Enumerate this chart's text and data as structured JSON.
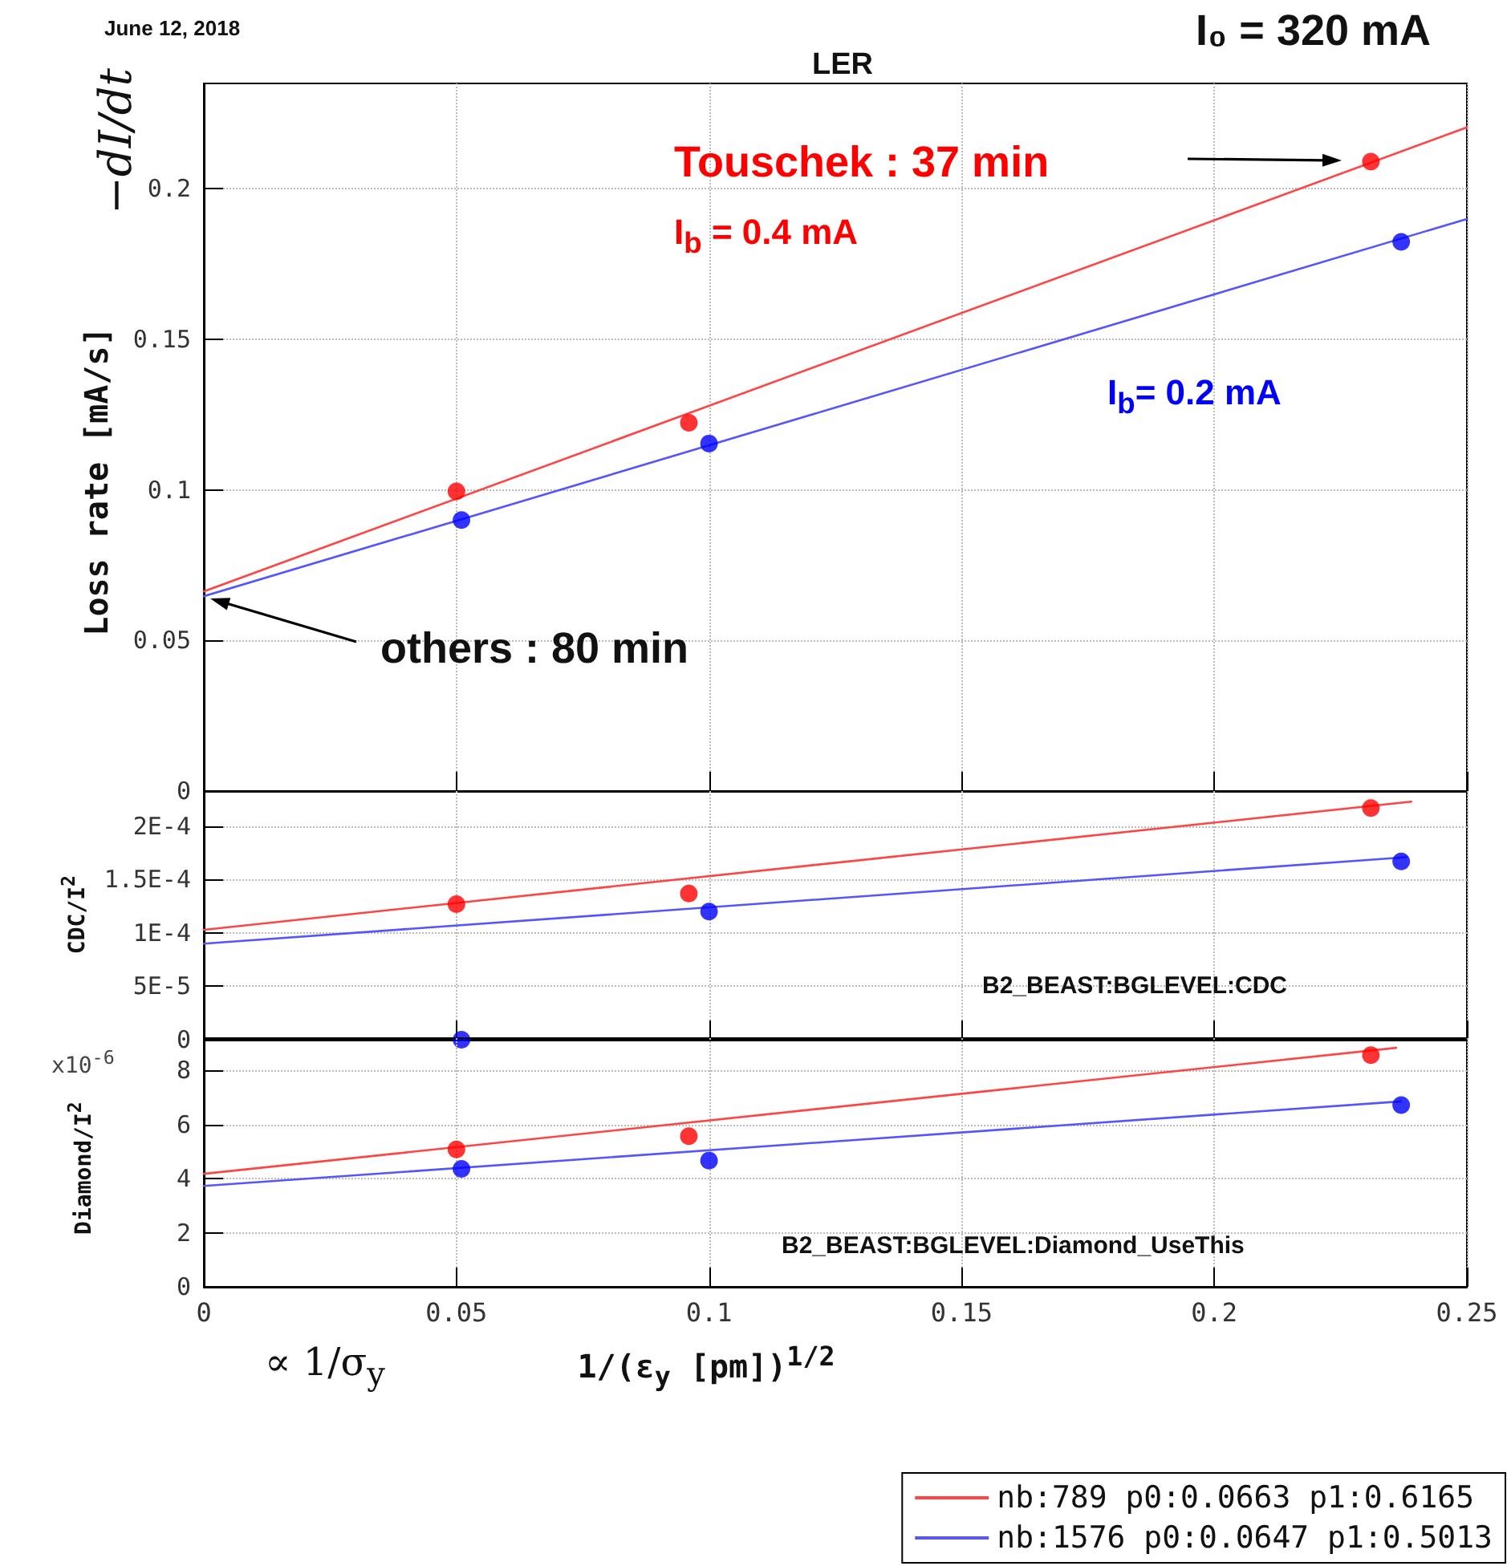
{
  "chart_data": [
    {
      "type": "scatter",
      "title": "LER",
      "ylabel": "Loss rate [mA/s]",
      "annotations": [
        "June 12, 2018",
        "I₀ = 320 mA",
        "Touschek : 37 min",
        "I$_{b}$ = 0.4 mA",
        "I$_{b}$= 0.2 mA",
        "others : 80 min",
        "−dI/dt"
      ],
      "series": [
        {
          "color": "#ff0000",
          "x": [
            0.05,
            0.096,
            0.231
          ],
          "values": [
            0.0995,
            0.1223,
            0.209
          ]
        },
        {
          "color": "#0000ff",
          "x": [
            0.051,
            0.1,
            0.237
          ],
          "values": [
            0.09,
            0.1154,
            0.1824
          ]
        },
        {
          "type": "line",
          "marker": "none",
          "name": "nb:789 p0:0.0663 p1:0.6165",
          "color": "#ff4444",
          "x": [
            0,
            0.25
          ],
          "values": [
            0.0663,
            0.2204
          ]
        },
        {
          "type": "line",
          "marker": "none",
          "name": "nb:1576 p0:0.0647 p1:0.5013",
          "color": "#5555ff",
          "x": [
            0,
            0.25
          ],
          "values": [
            0.0647,
            0.19
          ]
        }
      ],
      "xlim": [
        0,
        0.25
      ],
      "xticks": [
        0,
        0.05,
        0.1,
        0.15,
        0.2,
        0.25
      ],
      "ylim": [
        0,
        0.235
      ],
      "yticks": [
        0,
        0.05,
        0.1,
        0.15,
        0.2
      ],
      "tick_labels": "y",
      "grid": true,
      "marker": "circle",
      "line_style": "solid",
      "legend": "bottom right"
    },
    {
      "type": "scatter",
      "ylabel": "CDC/I$^{2}$",
      "annotations": [
        "B2_BEAST:BGLEVEL:CDC"
      ],
      "series": [
        {
          "color": "#ff0000",
          "x": [
            0.05,
            0.096,
            0.231
          ],
          "values": [
            0.000127,
            0.000137,
            0.000217
          ]
        },
        {
          "color": "#0000ff",
          "x": [
            0.051,
            0.1,
            0.237
          ],
          "values": [
            0,
            0.00012,
            0.000167
          ]
        },
        {
          "type": "line",
          "marker": "none",
          "color": "#ff4444",
          "x": [
            0,
            0.239
          ],
          "values": [
            0.000103,
            0.000223
          ]
        },
        {
          "type": "line",
          "marker": "none",
          "color": "#5555ff",
          "x": [
            0,
            0.238
          ],
          "values": [
            9e-05,
            0.000171
          ]
        }
      ],
      "xlim": [
        0,
        0.25
      ],
      "xticks": [
        0,
        0.05,
        0.1,
        0.15,
        0.2,
        0.25
      ],
      "ylim": [
        0,
        0.000233
      ],
      "yticks": [
        0,
        {
          "value": 5e-05,
          "label": "5E-5"
        },
        {
          "value": 0.0001,
          "label": "1E-4"
        },
        {
          "value": 0.00015,
          "label": "1.5E-4"
        },
        {
          "value": 0.0002,
          "label": "2E-4"
        }
      ],
      "tick_labels": "y",
      "grid": true,
      "marker": "circle",
      "line_style": "solid"
    },
    {
      "type": "scatter",
      "ylabel": "Diamond/I$^{2}$",
      "xlabel": "1/(ε$_{y}$ [pm])$^{1/2}$",
      "annotations": [
        "x10$^{-6}$",
        "B2_BEAST:BGLEVEL:Diamond_UseThis",
        "∝ 1/σ$_{y}$"
      ],
      "series": [
        {
          "color": "#ff0000",
          "x": [
            0.05,
            0.096,
            0.231
          ],
          "values": [
            5.08,
            5.57,
            8.57
          ]
        },
        {
          "color": "#0000ff",
          "x": [
            0.051,
            0.1,
            0.237
          ],
          "values": [
            4.36,
            4.67,
            6.72
          ]
        },
        {
          "type": "line",
          "marker": "none",
          "color": "#ff4444",
          "x": [
            0,
            0.236
          ],
          "values": [
            4.18,
            8.84
          ]
        },
        {
          "type": "line",
          "marker": "none",
          "color": "#5555ff",
          "x": [
            0,
            0.237
          ],
          "values": [
            3.73,
            6.86
          ]
        }
      ],
      "xlim": [
        0,
        0.25
      ],
      "xticks": [
        0,
        0.05,
        0.1,
        0.15,
        0.2,
        0.25
      ],
      "ylim": [
        0,
        9.2
      ],
      "yticks": [
        0,
        2,
        4,
        6,
        8
      ],
      "grid": true,
      "marker": "circle",
      "line_style": "solid"
    }
  ]
}
